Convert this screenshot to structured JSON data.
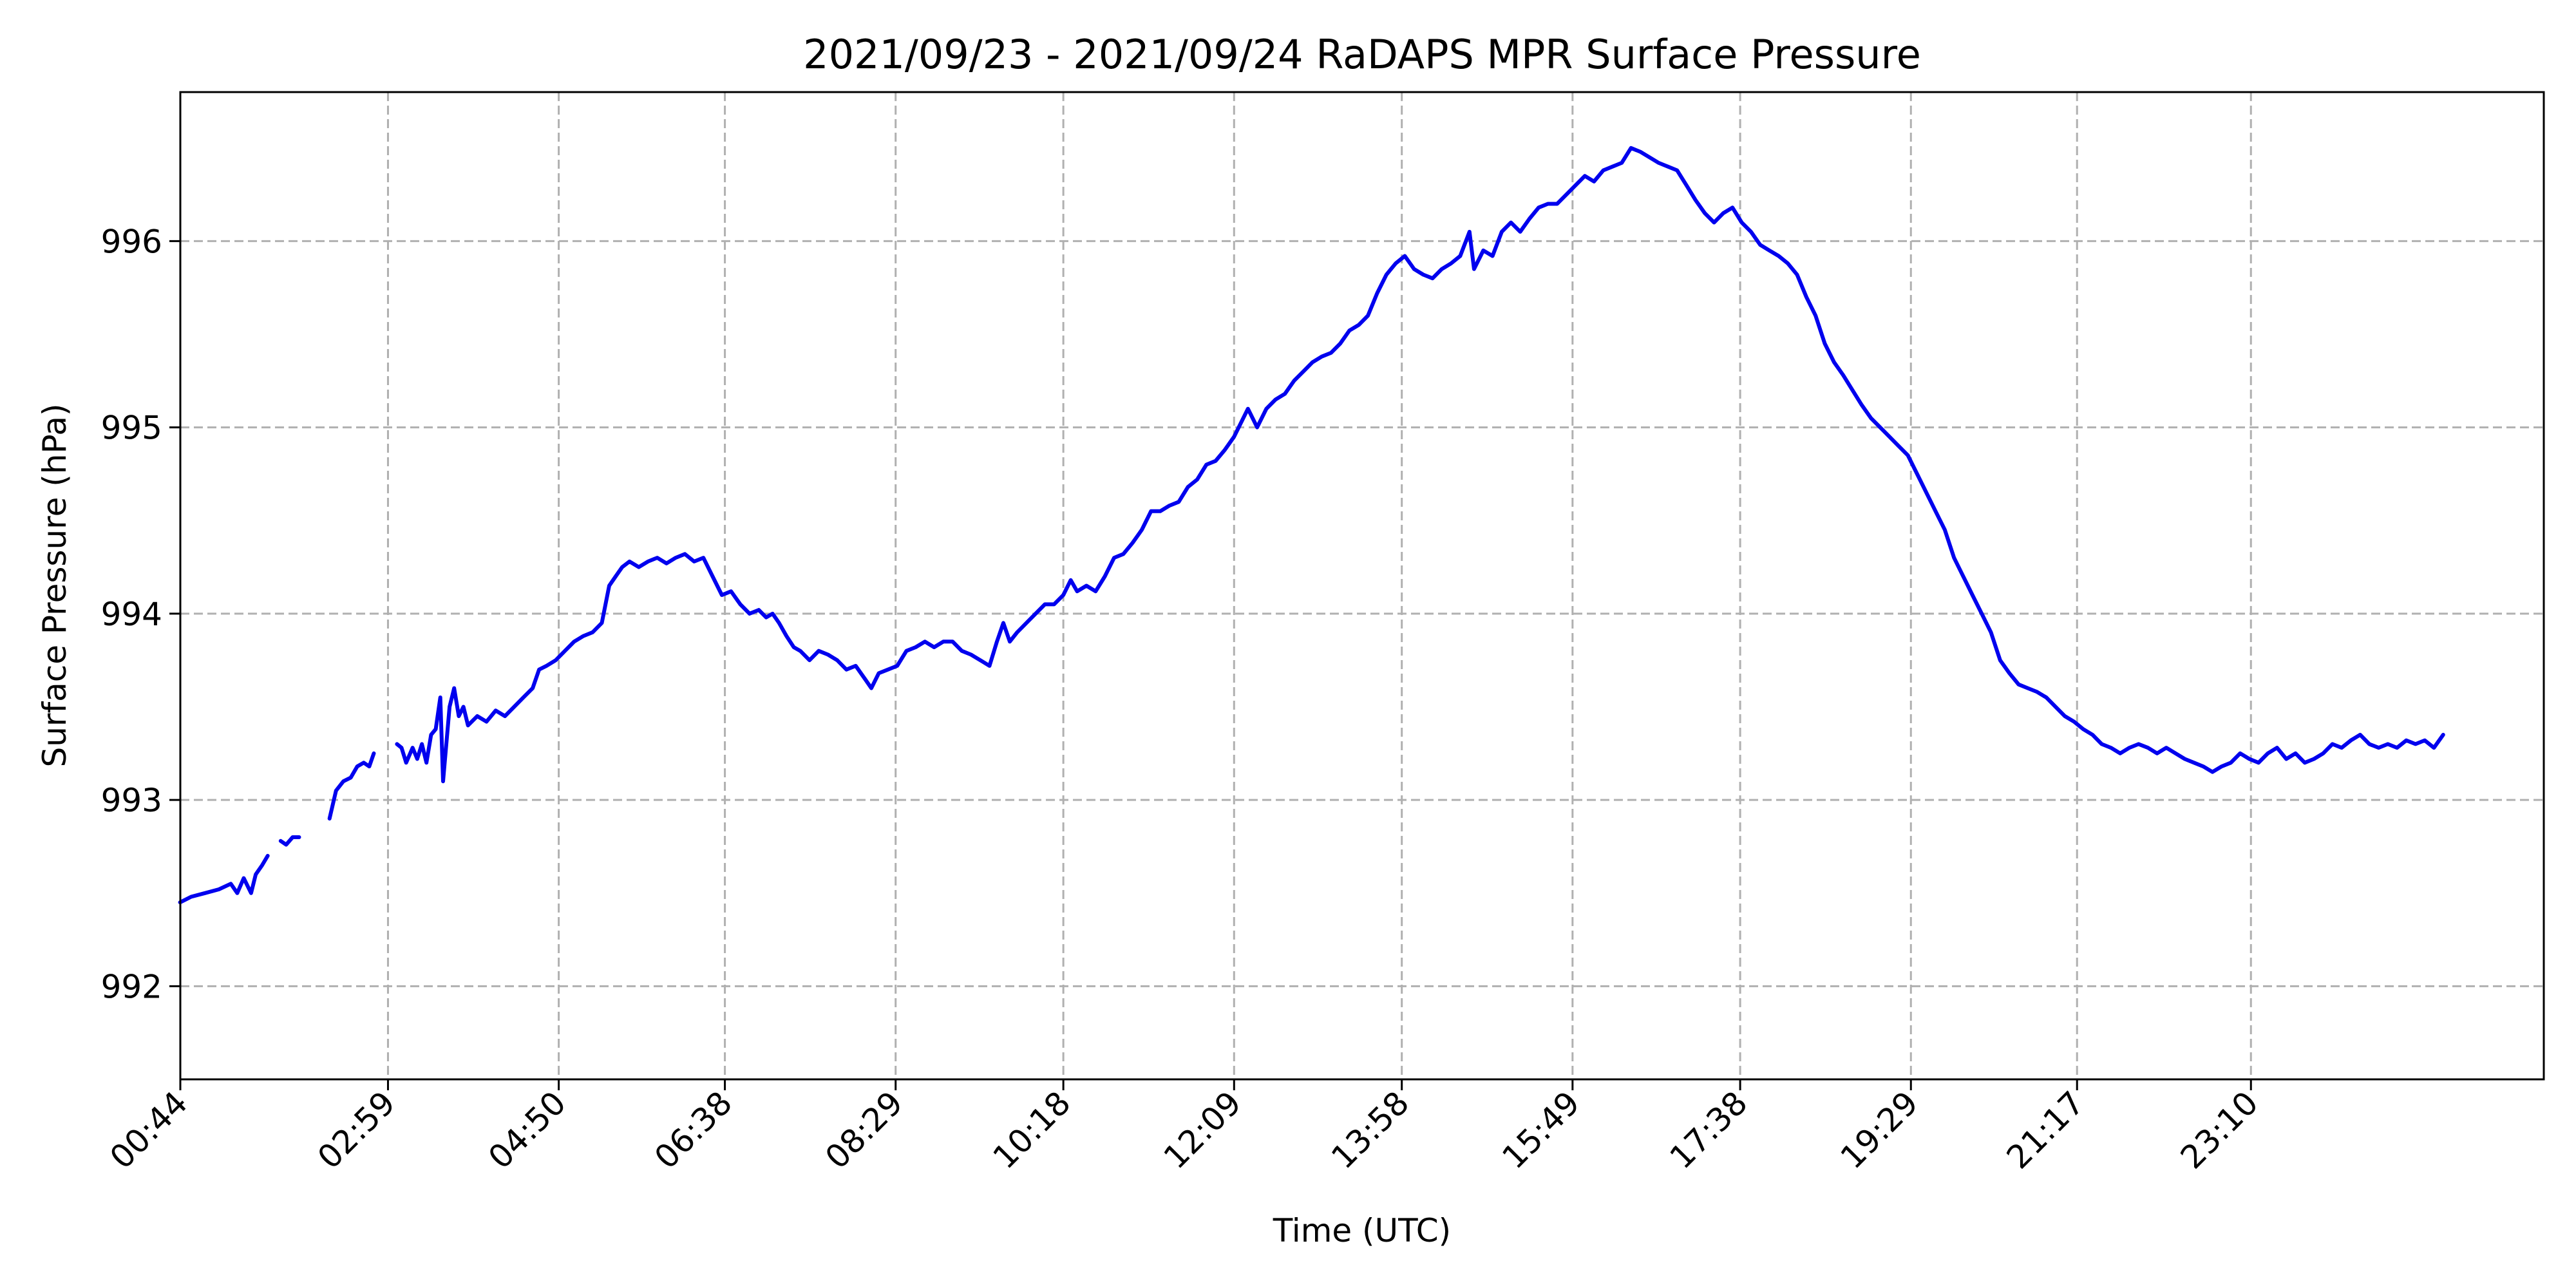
{
  "chart_data": {
    "type": "line",
    "title": "2021/09/23 - 2021/09/24 RaDAPS MPR Surface Pressure",
    "xlabel": "Time (UTC)",
    "ylabel": "Surface Pressure (hPa)",
    "x_unit": "hours since 00:00 UTC 2021/09/23",
    "xlim": [
      0.733,
      26.34
    ],
    "ylim": [
      991.5,
      996.8
    ],
    "grid": true,
    "line_color": "#0000ee",
    "x_ticks": [
      {
        "value": 0.733,
        "label": "00:44"
      },
      {
        "value": 2.983,
        "label": "02:59"
      },
      {
        "value": 4.833,
        "label": "04:50"
      },
      {
        "value": 6.633,
        "label": "06:38"
      },
      {
        "value": 8.483,
        "label": "08:29"
      },
      {
        "value": 10.3,
        "label": "10:18"
      },
      {
        "value": 12.15,
        "label": "12:09"
      },
      {
        "value": 13.967,
        "label": "13:58"
      },
      {
        "value": 15.817,
        "label": "15:49"
      },
      {
        "value": 17.633,
        "label": "17:38"
      },
      {
        "value": 19.483,
        "label": "19:29"
      },
      {
        "value": 21.283,
        "label": "21:17"
      },
      {
        "value": 23.167,
        "label": "23:10"
      }
    ],
    "y_ticks": [
      {
        "value": 992,
        "label": "992"
      },
      {
        "value": 993,
        "label": "993"
      },
      {
        "value": 994,
        "label": "994"
      },
      {
        "value": 995,
        "label": "995"
      },
      {
        "value": 996,
        "label": "996"
      }
    ],
    "series": [
      {
        "segments": [
          [
            [
              0.73,
              992.45
            ],
            [
              0.85,
              992.48
            ],
            [
              1.0,
              992.5
            ],
            [
              1.15,
              992.52
            ],
            [
              1.28,
              992.55
            ],
            [
              1.35,
              992.5
            ],
            [
              1.42,
              992.58
            ],
            [
              1.5,
              992.5
            ],
            [
              1.55,
              992.6
            ],
            [
              1.62,
              992.65
            ],
            [
              1.68,
              992.7
            ]
          ],
          [
            [
              1.82,
              992.78
            ],
            [
              1.88,
              992.76
            ],
            [
              1.95,
              992.8
            ],
            [
              2.02,
              992.8
            ]
          ],
          [
            [
              2.35,
              992.9
            ],
            [
              2.42,
              993.05
            ],
            [
              2.5,
              993.1
            ],
            [
              2.58,
              993.12
            ],
            [
              2.65,
              993.18
            ],
            [
              2.72,
              993.2
            ],
            [
              2.78,
              993.18
            ],
            [
              2.83,
              993.25
            ]
          ],
          [
            [
              3.08,
              993.3
            ],
            [
              3.13,
              993.28
            ],
            [
              3.18,
              993.2
            ],
            [
              3.25,
              993.28
            ],
            [
              3.3,
              993.22
            ],
            [
              3.35,
              993.3
            ],
            [
              3.4,
              993.2
            ],
            [
              3.45,
              993.35
            ],
            [
              3.5,
              993.38
            ],
            [
              3.55,
              993.55
            ],
            [
              3.58,
              993.1
            ],
            [
              3.65,
              993.5
            ],
            [
              3.7,
              993.6
            ],
            [
              3.75,
              993.45
            ],
            [
              3.8,
              993.5
            ],
            [
              3.85,
              993.4
            ],
            [
              3.95,
              993.45
            ],
            [
              4.05,
              993.42
            ],
            [
              4.15,
              993.48
            ],
            [
              4.25,
              993.45
            ],
            [
              4.35,
              993.5
            ],
            [
              4.45,
              993.55
            ],
            [
              4.55,
              993.6
            ],
            [
              4.62,
              993.7
            ],
            [
              4.7,
              993.72
            ],
            [
              4.8,
              993.75
            ],
            [
              4.9,
              993.8
            ],
            [
              5.0,
              993.85
            ],
            [
              5.1,
              993.88
            ],
            [
              5.2,
              993.9
            ],
            [
              5.3,
              993.95
            ],
            [
              5.38,
              994.15
            ],
            [
              5.45,
              994.2
            ],
            [
              5.52,
              994.25
            ],
            [
              5.6,
              994.28
            ],
            [
              5.7,
              994.25
            ],
            [
              5.8,
              994.28
            ],
            [
              5.9,
              994.3
            ],
            [
              6.0,
              994.27
            ],
            [
              6.1,
              994.3
            ],
            [
              6.2,
              994.32
            ],
            [
              6.3,
              994.28
            ],
            [
              6.4,
              994.3
            ],
            [
              6.5,
              994.2
            ],
            [
              6.6,
              994.1
            ],
            [
              6.7,
              994.12
            ],
            [
              6.8,
              994.05
            ],
            [
              6.9,
              994.0
            ],
            [
              7.0,
              994.02
            ],
            [
              7.08,
              993.98
            ],
            [
              7.15,
              994.0
            ],
            [
              7.22,
              993.95
            ],
            [
              7.3,
              993.88
            ],
            [
              7.38,
              993.82
            ],
            [
              7.45,
              993.8
            ],
            [
              7.55,
              993.75
            ],
            [
              7.65,
              993.8
            ],
            [
              7.75,
              993.78
            ],
            [
              7.85,
              993.75
            ],
            [
              7.95,
              993.7
            ],
            [
              8.05,
              993.72
            ],
            [
              8.15,
              993.65
            ],
            [
              8.22,
              993.6
            ],
            [
              8.3,
              993.68
            ],
            [
              8.4,
              993.7
            ],
            [
              8.5,
              993.72
            ],
            [
              8.6,
              993.8
            ],
            [
              8.7,
              993.82
            ],
            [
              8.8,
              993.85
            ],
            [
              8.9,
              993.82
            ],
            [
              9.0,
              993.85
            ],
            [
              9.1,
              993.85
            ],
            [
              9.2,
              993.8
            ],
            [
              9.3,
              993.78
            ],
            [
              9.4,
              993.75
            ],
            [
              9.5,
              993.72
            ],
            [
              9.58,
              993.85
            ],
            [
              9.65,
              993.95
            ],
            [
              9.72,
              993.85
            ],
            [
              9.8,
              993.9
            ],
            [
              9.9,
              993.95
            ],
            [
              10.0,
              994.0
            ],
            [
              10.1,
              994.05
            ],
            [
              10.2,
              994.05
            ],
            [
              10.3,
              994.1
            ],
            [
              10.38,
              994.18
            ],
            [
              10.45,
              994.12
            ],
            [
              10.55,
              994.15
            ],
            [
              10.65,
              994.12
            ],
            [
              10.75,
              994.2
            ],
            [
              10.85,
              994.3
            ],
            [
              10.95,
              994.32
            ],
            [
              11.05,
              994.38
            ],
            [
              11.15,
              994.45
            ],
            [
              11.25,
              994.55
            ],
            [
              11.35,
              994.55
            ],
            [
              11.45,
              994.58
            ],
            [
              11.55,
              994.6
            ],
            [
              11.65,
              994.68
            ],
            [
              11.75,
              994.72
            ],
            [
              11.85,
              994.8
            ],
            [
              11.95,
              994.82
            ],
            [
              12.05,
              994.88
            ],
            [
              12.15,
              994.95
            ],
            [
              12.25,
              995.05
            ],
            [
              12.3,
              995.1
            ],
            [
              12.4,
              995.0
            ],
            [
              12.5,
              995.1
            ],
            [
              12.6,
              995.15
            ],
            [
              12.7,
              995.18
            ],
            [
              12.8,
              995.25
            ],
            [
              12.9,
              995.3
            ],
            [
              13.0,
              995.35
            ],
            [
              13.1,
              995.38
            ],
            [
              13.2,
              995.4
            ],
            [
              13.3,
              995.45
            ],
            [
              13.4,
              995.52
            ],
            [
              13.5,
              995.55
            ],
            [
              13.6,
              995.6
            ],
            [
              13.7,
              995.72
            ],
            [
              13.8,
              995.82
            ],
            [
              13.9,
              995.88
            ],
            [
              14.0,
              995.92
            ],
            [
              14.1,
              995.85
            ],
            [
              14.2,
              995.82
            ],
            [
              14.3,
              995.8
            ],
            [
              14.4,
              995.85
            ],
            [
              14.5,
              995.88
            ],
            [
              14.6,
              995.92
            ],
            [
              14.7,
              996.05
            ],
            [
              14.75,
              995.85
            ],
            [
              14.85,
              995.95
            ],
            [
              14.95,
              995.92
            ],
            [
              15.05,
              996.05
            ],
            [
              15.15,
              996.1
            ],
            [
              15.25,
              996.05
            ],
            [
              15.35,
              996.12
            ],
            [
              15.45,
              996.18
            ],
            [
              15.55,
              996.2
            ],
            [
              15.65,
              996.2
            ],
            [
              15.75,
              996.25
            ],
            [
              15.85,
              996.3
            ],
            [
              15.95,
              996.35
            ],
            [
              16.05,
              996.32
            ],
            [
              16.15,
              996.38
            ],
            [
              16.25,
              996.4
            ],
            [
              16.35,
              996.42
            ],
            [
              16.45,
              996.5
            ],
            [
              16.55,
              996.48
            ],
            [
              16.65,
              996.45
            ],
            [
              16.75,
              996.42
            ],
            [
              16.85,
              996.4
            ],
            [
              16.95,
              996.38
            ],
            [
              17.05,
              996.3
            ],
            [
              17.15,
              996.22
            ],
            [
              17.25,
              996.15
            ],
            [
              17.35,
              996.1
            ],
            [
              17.45,
              996.15
            ],
            [
              17.55,
              996.18
            ],
            [
              17.65,
              996.1
            ],
            [
              17.75,
              996.05
            ],
            [
              17.85,
              995.98
            ],
            [
              17.95,
              995.95
            ],
            [
              18.05,
              995.92
            ],
            [
              18.15,
              995.88
            ],
            [
              18.25,
              995.82
            ],
            [
              18.35,
              995.7
            ],
            [
              18.45,
              995.6
            ],
            [
              18.55,
              995.45
            ],
            [
              18.65,
              995.35
            ],
            [
              18.75,
              995.28
            ],
            [
              18.85,
              995.2
            ],
            [
              18.95,
              995.12
            ],
            [
              19.05,
              995.05
            ],
            [
              19.15,
              995.0
            ],
            [
              19.25,
              994.95
            ],
            [
              19.35,
              994.9
            ],
            [
              19.45,
              994.85
            ],
            [
              19.55,
              994.75
            ],
            [
              19.65,
              994.65
            ],
            [
              19.75,
              994.55
            ],
            [
              19.85,
              994.45
            ],
            [
              19.95,
              994.3
            ],
            [
              20.05,
              994.2
            ],
            [
              20.15,
              994.1
            ],
            [
              20.25,
              994.0
            ],
            [
              20.35,
              993.9
            ],
            [
              20.45,
              993.75
            ],
            [
              20.55,
              993.68
            ],
            [
              20.65,
              993.62
            ],
            [
              20.75,
              993.6
            ],
            [
              20.85,
              993.58
            ],
            [
              20.95,
              993.55
            ],
            [
              21.05,
              993.5
            ],
            [
              21.15,
              993.45
            ],
            [
              21.25,
              993.42
            ],
            [
              21.35,
              993.38
            ],
            [
              21.45,
              993.35
            ],
            [
              21.55,
              993.3
            ],
            [
              21.65,
              993.28
            ],
            [
              21.75,
              993.25
            ],
            [
              21.85,
              993.28
            ],
            [
              21.95,
              993.3
            ],
            [
              22.05,
              993.28
            ],
            [
              22.15,
              993.25
            ],
            [
              22.25,
              993.28
            ],
            [
              22.35,
              993.25
            ],
            [
              22.45,
              993.22
            ],
            [
              22.55,
              993.2
            ],
            [
              22.65,
              993.18
            ],
            [
              22.75,
              993.15
            ],
            [
              22.85,
              993.18
            ],
            [
              22.95,
              993.2
            ],
            [
              23.05,
              993.25
            ],
            [
              23.15,
              993.22
            ],
            [
              23.25,
              993.2
            ],
            [
              23.35,
              993.25
            ],
            [
              23.45,
              993.28
            ],
            [
              23.55,
              993.22
            ],
            [
              23.65,
              993.25
            ],
            [
              23.75,
              993.2
            ],
            [
              23.85,
              993.22
            ],
            [
              23.95,
              993.25
            ],
            [
              24.05,
              993.3
            ],
            [
              24.15,
              993.28
            ],
            [
              24.25,
              993.32
            ],
            [
              24.35,
              993.35
            ],
            [
              24.45,
              993.3
            ],
            [
              24.55,
              993.28
            ],
            [
              24.65,
              993.3
            ],
            [
              24.75,
              993.28
            ],
            [
              24.85,
              993.32
            ],
            [
              24.95,
              993.3
            ],
            [
              25.05,
              993.32
            ],
            [
              25.15,
              993.28
            ],
            [
              25.25,
              993.35
            ]
          ]
        ]
      }
    ]
  }
}
